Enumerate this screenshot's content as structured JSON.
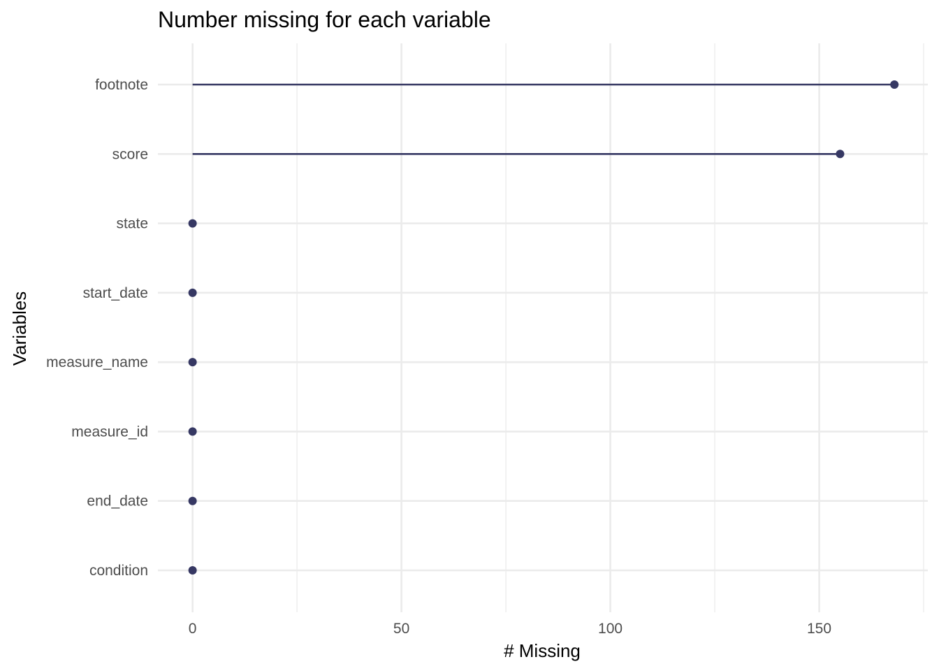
{
  "chart_data": {
    "type": "lollipop",
    "title": "Number missing for each variable",
    "xlabel": "# Missing",
    "ylabel": "Variables",
    "xlim": [
      -8.3,
      176
    ],
    "x_ticks": [
      0,
      50,
      100,
      150
    ],
    "x_minor_ticks": [
      25,
      75,
      125,
      175
    ],
    "categories": [
      "footnote",
      "score",
      "state",
      "start_date",
      "measure_name",
      "measure_id",
      "end_date",
      "condition"
    ],
    "values": [
      168,
      155,
      0,
      0,
      0,
      0,
      0,
      0
    ],
    "grid": true,
    "color": "#363863"
  }
}
